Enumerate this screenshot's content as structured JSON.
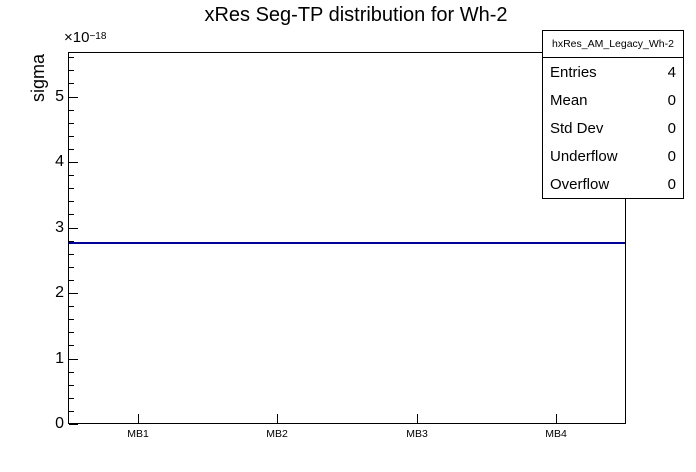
{
  "title": "xRes Seg-TP distribution for Wh-2",
  "colors": {
    "histogram_line": "#000099",
    "frame": "#000000",
    "background": "#ffffff",
    "text": "#000000"
  },
  "axis": {
    "y_title": "sigma",
    "exponent_base": "×10",
    "exponent_power": "−18",
    "y_ticks": [
      0,
      1,
      2,
      3,
      4,
      5
    ],
    "y_max_axis_units": 5.68,
    "minor_divisions": 5,
    "x_categories": [
      "MB1",
      "MB2",
      "MB3",
      "MB4"
    ]
  },
  "stats_box": {
    "header": "hxRes_AM_Legacy_Wh-2",
    "rows": [
      {
        "label": "Entries",
        "value": "4"
      },
      {
        "label": "Mean",
        "value": "0"
      },
      {
        "label": "Std Dev",
        "value": "0"
      },
      {
        "label": "Underflow",
        "value": "0"
      },
      {
        "label": "Overflow",
        "value": "0"
      }
    ]
  },
  "chart_data": {
    "type": "line",
    "title": "xRes Seg-TP distribution for Wh-2",
    "categories": [
      "MB1",
      "MB2",
      "MB3",
      "MB4"
    ],
    "series": [
      {
        "name": "hxRes_AM_Legacy_Wh-2",
        "values": [
          2.77e-18,
          2.77e-18,
          2.77e-18,
          2.77e-18
        ]
      }
    ],
    "value_axis_units": 2.77,
    "y_scale_exponent": -18,
    "xlabel": "",
    "ylabel": "sigma",
    "ylim": [
      0,
      5.68e-18
    ],
    "grid": false,
    "legend_position": "none",
    "line_color": "#000099"
  }
}
